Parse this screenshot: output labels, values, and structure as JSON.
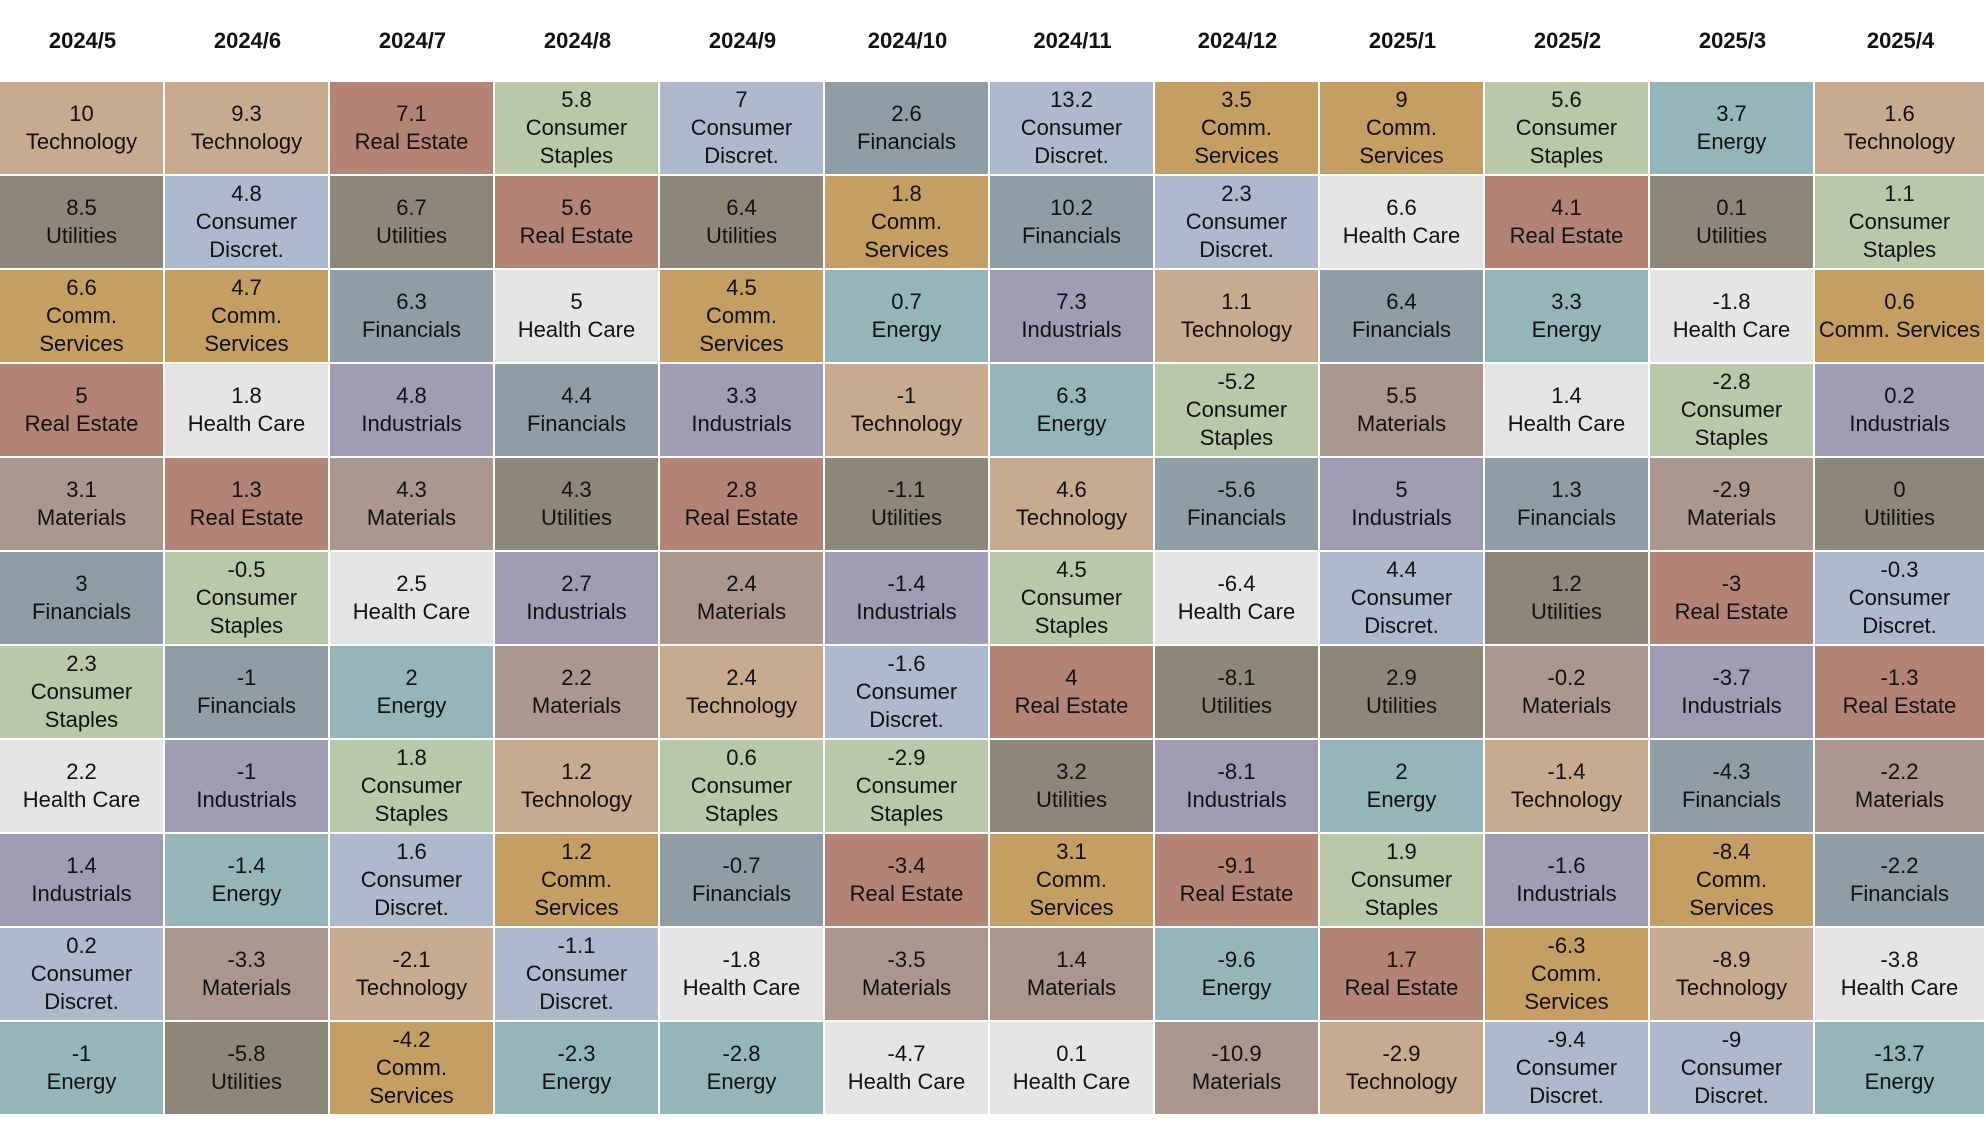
{
  "chart_data": {
    "type": "table",
    "title": "",
    "columns": [
      "2024/5",
      "2024/6",
      "2024/7",
      "2024/8",
      "2024/9",
      "2024/10",
      "2024/11",
      "2024/12",
      "2025/1",
      "2025/2",
      "2025/3",
      "2025/4"
    ],
    "sector_colors": {
      "Technology": "#c8ab8e",
      "Utilities": "#8c8779",
      "Comm. Services": "#c49e63",
      "Real Estate": "#b38376",
      "Materials": "#ab978d",
      "Financials": "#8f9ea6",
      "Consumer Staples": "#b9c8a8",
      "Health Care": "#e5e5e5",
      "Industrials": "#9f9cb3",
      "Consumer Discret.": "#aeb9cd",
      "Energy": "#94b6bb"
    },
    "grid": [
      [
        {
          "value": "10",
          "sector": "Technology"
        },
        {
          "value": "8.5",
          "sector": "Utilities"
        },
        {
          "value": "6.6",
          "sector": "Comm. Services"
        },
        {
          "value": "5",
          "sector": "Real Estate"
        },
        {
          "value": "3.1",
          "sector": "Materials"
        },
        {
          "value": "3",
          "sector": "Financials"
        },
        {
          "value": "2.3",
          "sector": "Consumer Staples"
        },
        {
          "value": "2.2",
          "sector": "Health Care"
        },
        {
          "value": "1.4",
          "sector": "Industrials"
        },
        {
          "value": "0.2",
          "sector": "Consumer Discret."
        },
        {
          "value": "-1",
          "sector": "Energy"
        }
      ],
      [
        {
          "value": "9.3",
          "sector": "Technology"
        },
        {
          "value": "4.8",
          "sector": "Consumer Discret."
        },
        {
          "value": "4.7",
          "sector": "Comm. Services"
        },
        {
          "value": "1.8",
          "sector": "Health Care"
        },
        {
          "value": "1.3",
          "sector": "Real Estate"
        },
        {
          "value": "-0.5",
          "sector": "Consumer Staples"
        },
        {
          "value": "-1",
          "sector": "Financials"
        },
        {
          "value": "-1",
          "sector": "Industrials"
        },
        {
          "value": "-1.4",
          "sector": "Energy"
        },
        {
          "value": "-3.3",
          "sector": "Materials"
        },
        {
          "value": "-5.8",
          "sector": "Utilities"
        }
      ],
      [
        {
          "value": "7.1",
          "sector": "Real Estate"
        },
        {
          "value": "6.7",
          "sector": "Utilities"
        },
        {
          "value": "6.3",
          "sector": "Financials"
        },
        {
          "value": "4.8",
          "sector": "Industrials"
        },
        {
          "value": "4.3",
          "sector": "Materials"
        },
        {
          "value": "2.5",
          "sector": "Health Care"
        },
        {
          "value": "2",
          "sector": "Energy"
        },
        {
          "value": "1.8",
          "sector": "Consumer Staples"
        },
        {
          "value": "1.6",
          "sector": "Consumer Discret."
        },
        {
          "value": "-2.1",
          "sector": "Technology"
        },
        {
          "value": "-4.2",
          "sector": "Comm. Services"
        }
      ],
      [
        {
          "value": "5.8",
          "sector": "Consumer Staples"
        },
        {
          "value": "5.6",
          "sector": "Real Estate"
        },
        {
          "value": "5",
          "sector": "Health Care"
        },
        {
          "value": "4.4",
          "sector": "Financials"
        },
        {
          "value": "4.3",
          "sector": "Utilities"
        },
        {
          "value": "2.7",
          "sector": "Industrials"
        },
        {
          "value": "2.2",
          "sector": "Materials"
        },
        {
          "value": "1.2",
          "sector": "Technology"
        },
        {
          "value": "1.2",
          "sector": "Comm. Services"
        },
        {
          "value": "-1.1",
          "sector": "Consumer Discret."
        },
        {
          "value": "-2.3",
          "sector": "Energy"
        }
      ],
      [
        {
          "value": "7",
          "sector": "Consumer Discret."
        },
        {
          "value": "6.4",
          "sector": "Utilities"
        },
        {
          "value": "4.5",
          "sector": "Comm. Services"
        },
        {
          "value": "3.3",
          "sector": "Industrials"
        },
        {
          "value": "2.8",
          "sector": "Real Estate"
        },
        {
          "value": "2.4",
          "sector": "Materials"
        },
        {
          "value": "2.4",
          "sector": "Technology"
        },
        {
          "value": "0.6",
          "sector": "Consumer Staples"
        },
        {
          "value": "-0.7",
          "sector": "Financials"
        },
        {
          "value": "-1.8",
          "sector": "Health Care"
        },
        {
          "value": "-2.8",
          "sector": "Energy"
        }
      ],
      [
        {
          "value": "2.6",
          "sector": "Financials"
        },
        {
          "value": "1.8",
          "sector": "Comm. Services"
        },
        {
          "value": "0.7",
          "sector": "Energy"
        },
        {
          "value": "-1",
          "sector": "Technology"
        },
        {
          "value": "-1.1",
          "sector": "Utilities"
        },
        {
          "value": "-1.4",
          "sector": "Industrials"
        },
        {
          "value": "-1.6",
          "sector": "Consumer Discret."
        },
        {
          "value": "-2.9",
          "sector": "Consumer Staples"
        },
        {
          "value": "-3.4",
          "sector": "Real Estate"
        },
        {
          "value": "-3.5",
          "sector": "Materials"
        },
        {
          "value": "-4.7",
          "sector": "Health Care"
        }
      ],
      [
        {
          "value": "13.2",
          "sector": "Consumer Discret."
        },
        {
          "value": "10.2",
          "sector": "Financials"
        },
        {
          "value": "7.3",
          "sector": "Industrials"
        },
        {
          "value": "6.3",
          "sector": "Energy"
        },
        {
          "value": "4.6",
          "sector": "Technology"
        },
        {
          "value": "4.5",
          "sector": "Consumer Staples"
        },
        {
          "value": "4",
          "sector": "Real Estate"
        },
        {
          "value": "3.2",
          "sector": "Utilities"
        },
        {
          "value": "3.1",
          "sector": "Comm. Services"
        },
        {
          "value": "1.4",
          "sector": "Materials"
        },
        {
          "value": "0.1",
          "sector": "Health Care"
        }
      ],
      [
        {
          "value": "3.5",
          "sector": "Comm. Services"
        },
        {
          "value": "2.3",
          "sector": "Consumer Discret."
        },
        {
          "value": "1.1",
          "sector": "Technology"
        },
        {
          "value": "-5.2",
          "sector": "Consumer Staples"
        },
        {
          "value": "-5.6",
          "sector": "Financials"
        },
        {
          "value": "-6.4",
          "sector": "Health Care"
        },
        {
          "value": "-8.1",
          "sector": "Utilities"
        },
        {
          "value": "-8.1",
          "sector": "Industrials"
        },
        {
          "value": "-9.1",
          "sector": "Real Estate"
        },
        {
          "value": "-9.6",
          "sector": "Energy"
        },
        {
          "value": "-10.9",
          "sector": "Materials"
        }
      ],
      [
        {
          "value": "9",
          "sector": "Comm. Services"
        },
        {
          "value": "6.6",
          "sector": "Health Care"
        },
        {
          "value": "6.4",
          "sector": "Financials"
        },
        {
          "value": "5.5",
          "sector": "Materials"
        },
        {
          "value": "5",
          "sector": "Industrials"
        },
        {
          "value": "4.4",
          "sector": "Consumer Discret."
        },
        {
          "value": "2.9",
          "sector": "Utilities"
        },
        {
          "value": "2",
          "sector": "Energy"
        },
        {
          "value": "1.9",
          "sector": "Consumer Staples"
        },
        {
          "value": "1.7",
          "sector": "Real Estate"
        },
        {
          "value": "-2.9",
          "sector": "Technology"
        }
      ],
      [
        {
          "value": "5.6",
          "sector": "Consumer Staples"
        },
        {
          "value": "4.1",
          "sector": "Real Estate"
        },
        {
          "value": "3.3",
          "sector": "Energy"
        },
        {
          "value": "1.4",
          "sector": "Health Care"
        },
        {
          "value": "1.3",
          "sector": "Financials"
        },
        {
          "value": "1.2",
          "sector": "Utilities"
        },
        {
          "value": "-0.2",
          "sector": "Materials"
        },
        {
          "value": "-1.4",
          "sector": "Technology"
        },
        {
          "value": "-1.6",
          "sector": "Industrials"
        },
        {
          "value": "-6.3",
          "sector": "Comm. Services"
        },
        {
          "value": "-9.4",
          "sector": "Consumer Discret."
        }
      ],
      [
        {
          "value": "3.7",
          "sector": "Energy"
        },
        {
          "value": "0.1",
          "sector": "Utilities"
        },
        {
          "value": "-1.8",
          "sector": "Health Care"
        },
        {
          "value": "-2.8",
          "sector": "Consumer Staples"
        },
        {
          "value": "-2.9",
          "sector": "Materials"
        },
        {
          "value": "-3",
          "sector": "Real Estate"
        },
        {
          "value": "-3.7",
          "sector": "Industrials"
        },
        {
          "value": "-4.3",
          "sector": "Financials"
        },
        {
          "value": "-8.4",
          "sector": "Comm. Services"
        },
        {
          "value": "-8.9",
          "sector": "Technology"
        },
        {
          "value": "-9",
          "sector": "Consumer Discret."
        }
      ],
      [
        {
          "value": "1.6",
          "sector": "Technology"
        },
        {
          "value": "1.1",
          "sector": "Consumer Staples"
        },
        {
          "value": "0.6",
          "sector": "Comm. Services",
          "single_line": true
        },
        {
          "value": "0.2",
          "sector": "Industrials"
        },
        {
          "value": "0",
          "sector": "Utilities"
        },
        {
          "value": "-0.3",
          "sector": "Consumer Discret."
        },
        {
          "value": "-1.3",
          "sector": "Real Estate"
        },
        {
          "value": "-2.2",
          "sector": "Materials"
        },
        {
          "value": "-2.2",
          "sector": "Financials"
        },
        {
          "value": "-3.8",
          "sector": "Health Care"
        },
        {
          "value": "-13.7",
          "sector": "Energy"
        }
      ]
    ]
  }
}
